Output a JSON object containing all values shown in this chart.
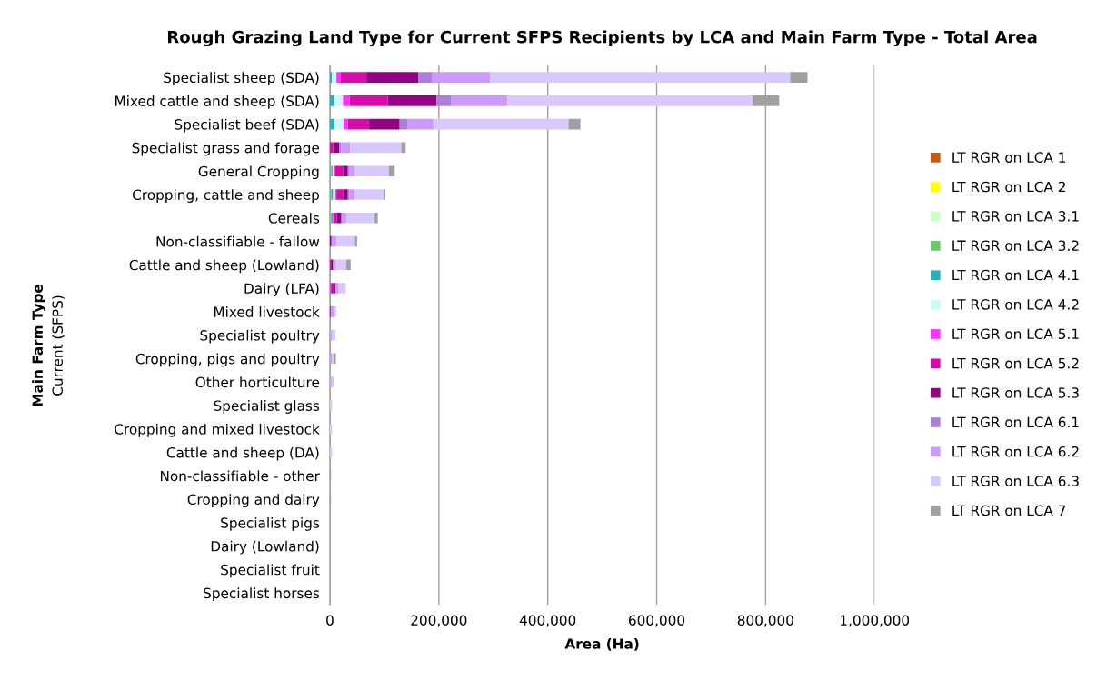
{
  "chart_data": {
    "type": "bar",
    "orientation": "horizontal",
    "stacked": true,
    "title": "Rough Grazing Land Type for Current SFPS Recipients by LCA and Main Farm Type - Total Area",
    "xlabel": "Area (Ha)",
    "ylabel": "Main Farm Type\nCurrent (SFPS)",
    "categories": [
      "Specialist sheep (SDA)",
      "Mixed cattle and sheep (SDA)",
      "Specialist beef (SDA)",
      "Specialist grass and forage",
      "General Cropping",
      "Cropping, cattle and sheep",
      "Cereals",
      "Non-classifiable - fallow",
      "Cattle and sheep (Lowland)",
      "Dairy (LFA)",
      "Mixed livestock",
      "Specialist poultry",
      "Cropping, pigs and poultry",
      "Other horticulture",
      "Specialist glass",
      "Cropping and mixed livestock",
      "Cattle and sheep (DA)",
      "Non-classifiable - other",
      "Cropping and dairy",
      "Specialist pigs",
      "Dairy (Lowland)",
      "Specialist fruit",
      "Specialist horses"
    ],
    "series": [
      {
        "name": "LT RGR on LCA 1",
        "color": "#c55a11",
        "values": [
          0,
          0,
          0,
          0,
          0,
          0,
          0,
          0,
          0,
          0,
          0,
          0,
          0,
          0,
          0,
          0,
          0,
          0,
          0,
          0,
          0,
          0,
          0
        ]
      },
      {
        "name": "LT RGR on LCA 2",
        "color": "#ffff00",
        "values": [
          0,
          0,
          0,
          0,
          0,
          0,
          0,
          0,
          0,
          0,
          0,
          0,
          0,
          0,
          0,
          0,
          0,
          0,
          0,
          0,
          0,
          0,
          0
        ]
      },
      {
        "name": "LT RGR on LCA 3.1",
        "color": "#ccffcc",
        "values": [
          0,
          0,
          0,
          0,
          0,
          0,
          0,
          0,
          0,
          0,
          0,
          0,
          0,
          0,
          0,
          0,
          0,
          0,
          0,
          0,
          0,
          0,
          0
        ]
      },
      {
        "name": "LT RGR on LCA 3.2",
        "color": "#66cc66",
        "values": [
          0,
          0,
          null,
          0,
          3000,
          3000,
          3000,
          0,
          0,
          0,
          0,
          0,
          0,
          0,
          0,
          0,
          0,
          0,
          0,
          0,
          0,
          0,
          0
        ]
      },
      {
        "name": "LT RGR on LCA 4.1",
        "color": "#1fb4c0",
        "values": [
          4000,
          8000,
          9000,
          0,
          2000,
          3000,
          3000,
          0,
          0,
          0,
          0,
          0,
          0,
          0,
          0,
          0,
          0,
          0,
          0,
          0,
          0,
          0,
          0
        ]
      },
      {
        "name": "LT RGR on LCA 4.2",
        "color": "#ccf8ff",
        "values": [
          8000,
          16000,
          16000,
          0,
          2000,
          4000,
          0,
          0,
          0,
          0,
          0,
          0,
          0,
          0,
          0,
          0,
          0,
          0,
          0,
          0,
          0,
          0,
          0
        ]
      },
      {
        "name": "LT RGR on LCA 5.1",
        "color": "#ff33ff",
        "values": [
          8000,
          12000,
          8000,
          0,
          3000,
          2000,
          2000,
          0,
          0,
          2000,
          0,
          0,
          0,
          0,
          0,
          0,
          0,
          0,
          0,
          0,
          0,
          0,
          0
        ]
      },
      {
        "name": "LT RGR on LCA 5.2",
        "color": "#d60ba9",
        "values": [
          47000,
          70000,
          39000,
          6000,
          14000,
          12000,
          5000,
          0,
          2000,
          5000,
          2000,
          0,
          0,
          0,
          0,
          0,
          0,
          0,
          0,
          0,
          0,
          0,
          0
        ]
      },
      {
        "name": "LT RGR on LCA 5.3",
        "color": "#920083",
        "values": [
          95000,
          90000,
          56000,
          11000,
          9000,
          9000,
          8000,
          3000,
          4000,
          3000,
          0,
          0,
          0,
          0,
          0,
          0,
          0,
          0,
          0,
          0,
          0,
          0,
          0
        ]
      },
      {
        "name": "LT RGR on LCA 6.1",
        "color": "#aa80d6",
        "values": [
          25000,
          26000,
          14000,
          4000,
          2000,
          3000,
          2000,
          null,
          0,
          0,
          0,
          0,
          0,
          0,
          0,
          0,
          0,
          0,
          0,
          0,
          0,
          0,
          0
        ]
      },
      {
        "name": "LT RGR on LCA 6.2",
        "color": "#cc99ff",
        "values": [
          107000,
          104000,
          48000,
          16000,
          11000,
          10000,
          7000,
          9000,
          4000,
          6000,
          5000,
          4000,
          4000,
          3000,
          0,
          0,
          0,
          0,
          0,
          0,
          0,
          0,
          0
        ]
      },
      {
        "name": "LT RGR on LCA 6.3",
        "color": "#d9c8ff",
        "values": [
          551000,
          450000,
          248000,
          94000,
          62000,
          53000,
          52000,
          34000,
          20000,
          13000,
          5000,
          6000,
          3000,
          4000,
          4000,
          4000,
          4000,
          0,
          0,
          0,
          0,
          0,
          0
        ]
      },
      {
        "name": "LT RGR on LCA 7",
        "color": "#a0a0a0",
        "values": [
          32000,
          49000,
          22000,
          8000,
          11000,
          3000,
          6000,
          4000,
          8000,
          0,
          0,
          0,
          4000,
          0,
          0,
          0,
          0,
          2000,
          2000,
          0,
          0,
          0,
          0
        ]
      }
    ],
    "xlim": [
      0,
      1000000
    ],
    "xticks": [
      {
        "value": 0,
        "label": "0"
      },
      {
        "value": 200000,
        "label": "200,000"
      },
      {
        "value": 400000,
        "label": "400,000"
      },
      {
        "value": 600000,
        "label": "600,000"
      },
      {
        "value": 800000,
        "label": "800,000"
      },
      {
        "value": 1000000,
        "label": "1,000,000"
      }
    ],
    "grid": "x",
    "legend": "right"
  }
}
